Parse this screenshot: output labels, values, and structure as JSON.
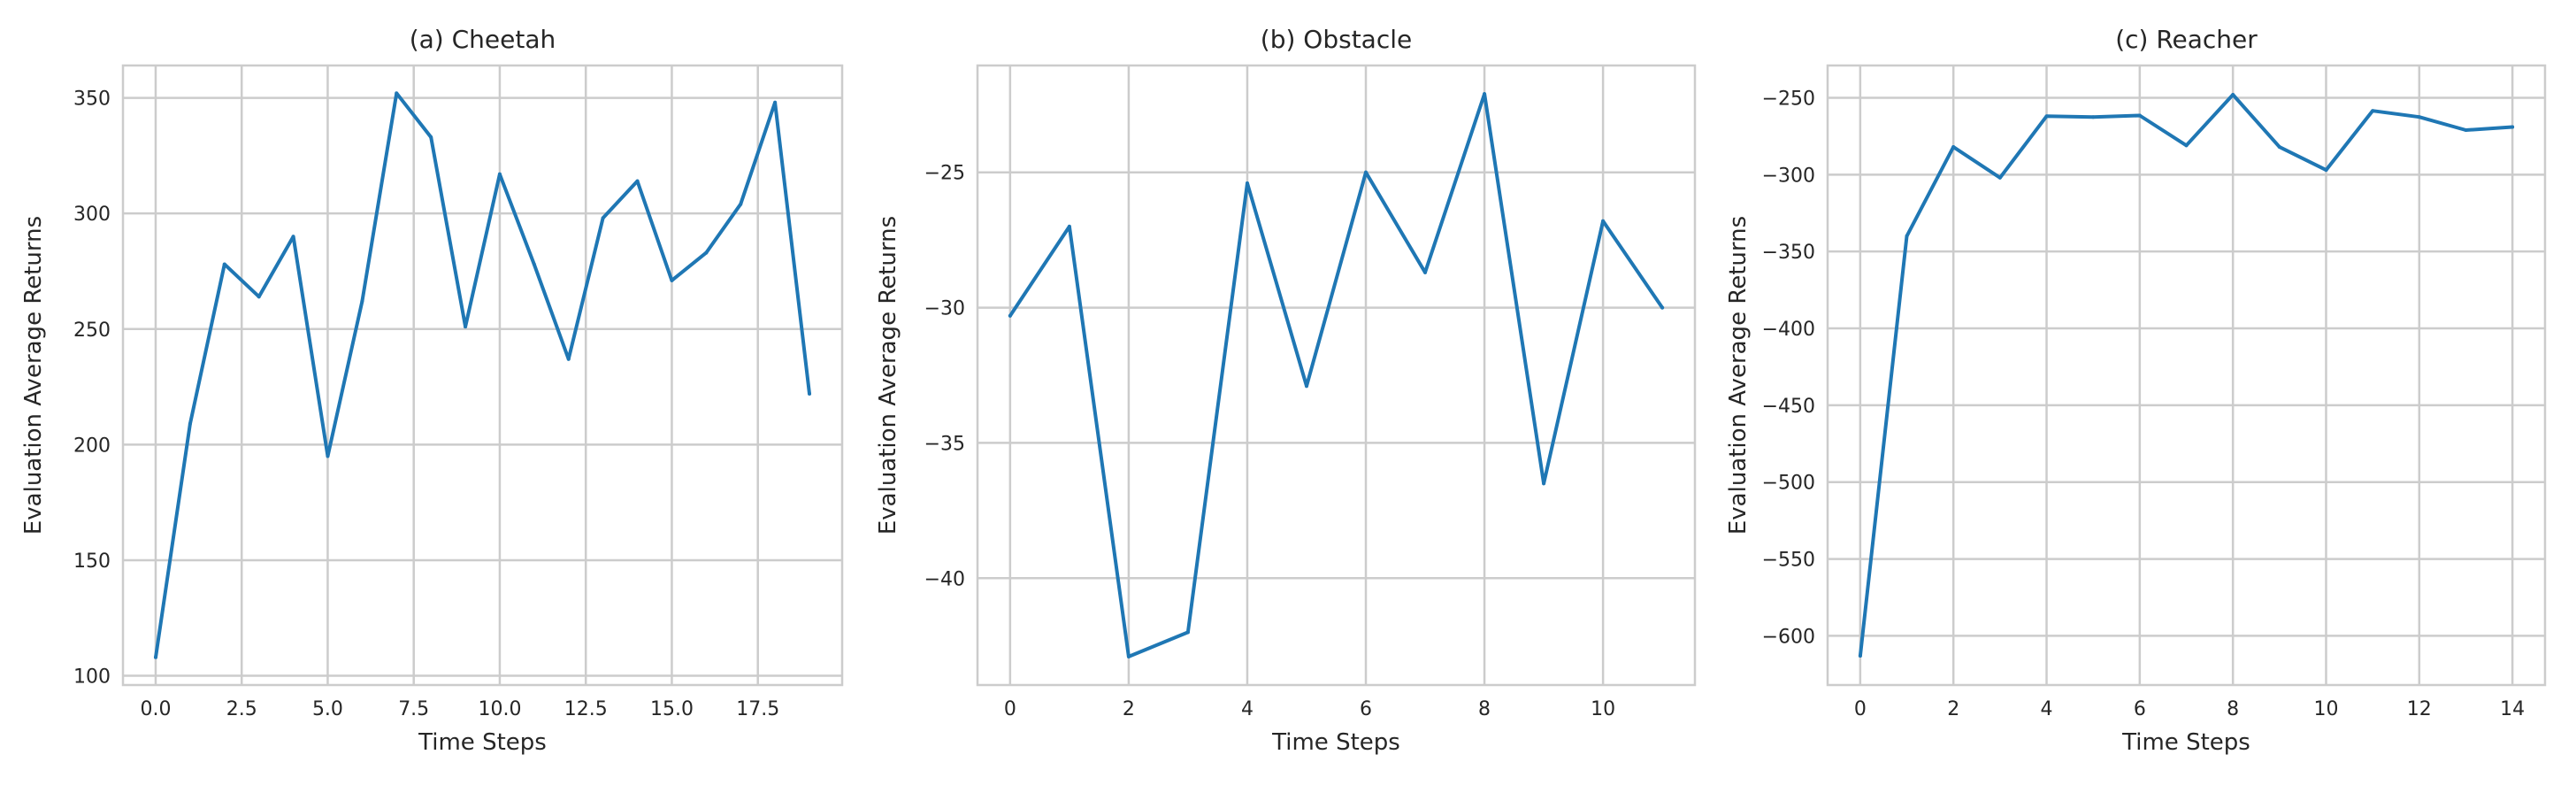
{
  "chart_data": [
    {
      "type": "line",
      "title": "(a) Cheetah",
      "xlabel": "Time Steps",
      "ylabel": "Evaluation Average Returns",
      "xlim": [
        -0.95,
        19.95
      ],
      "ylim": [
        96,
        364
      ],
      "xticks": [
        0,
        2.5,
        5,
        7.5,
        10,
        12.5,
        15,
        17.5
      ],
      "xtick_labels": [
        "0.0",
        "2.5",
        "5.0",
        "7.5",
        "10.0",
        "12.5",
        "15.0",
        "17.5"
      ],
      "yticks": [
        100,
        150,
        200,
        250,
        300,
        350
      ],
      "ytick_labels": [
        "100",
        "150",
        "200",
        "250",
        "300",
        "350"
      ],
      "grid": true,
      "series": [
        {
          "color": "#1f77b4",
          "x": [
            0,
            1,
            2,
            3,
            4,
            5,
            6,
            7,
            8,
            9,
            10,
            11,
            12,
            13,
            14,
            15,
            16,
            17,
            18,
            19
          ],
          "values": [
            108,
            209,
            278,
            264,
            290,
            195,
            262,
            352,
            333,
            251,
            317,
            278,
            237,
            298,
            314,
            271,
            283,
            304,
            348,
            222
          ]
        }
      ]
    },
    {
      "type": "line",
      "title": "(b) Obstacle",
      "xlabel": "Time Steps",
      "ylabel": "Evaluation Average Returns",
      "xlim": [
        -0.55,
        11.55
      ],
      "ylim": [
        -43.95,
        -21.05
      ],
      "xticks": [
        0,
        2,
        4,
        6,
        8,
        10
      ],
      "xtick_labels": [
        "0",
        "2",
        "4",
        "6",
        "8",
        "10"
      ],
      "yticks": [
        -40,
        -35,
        -30,
        -25
      ],
      "ytick_labels": [
        "−40",
        "−35",
        "−30",
        "−25"
      ],
      "grid": true,
      "series": [
        {
          "color": "#1f77b4",
          "x": [
            0,
            1,
            2,
            3,
            4,
            5,
            6,
            7,
            8,
            9,
            10,
            11
          ],
          "values": [
            -30.3,
            -27.0,
            -42.9,
            -42.0,
            -25.4,
            -32.9,
            -25.0,
            -28.7,
            -22.1,
            -36.5,
            -26.8,
            -30.0
          ]
        }
      ]
    },
    {
      "type": "line",
      "title": "(c) Reacher",
      "xlabel": "Time Steps",
      "ylabel": "Evaluation Average Returns",
      "xlim": [
        -0.7,
        14.7
      ],
      "ylim": [
        -632,
        -229
      ],
      "xticks": [
        0,
        2,
        4,
        6,
        8,
        10,
        12,
        14
      ],
      "xtick_labels": [
        "0",
        "2",
        "4",
        "6",
        "8",
        "10",
        "12",
        "14"
      ],
      "yticks": [
        -600,
        -550,
        -500,
        -450,
        -400,
        -350,
        -300,
        -250
      ],
      "ytick_labels": [
        "−600",
        "−550",
        "−500",
        "−450",
        "−400",
        "−350",
        "−300",
        "−250"
      ],
      "grid": true,
      "series": [
        {
          "color": "#1f77b4",
          "x": [
            0,
            1,
            2,
            3,
            4,
            5,
            6,
            7,
            8,
            9,
            10,
            11,
            12,
            13,
            14
          ],
          "values": [
            -613,
            -340,
            -282,
            -302,
            -262,
            -262.5,
            -261.5,
            -281,
            -248,
            -282,
            -297,
            -258.5,
            -262.5,
            -271,
            -269
          ]
        }
      ]
    }
  ]
}
